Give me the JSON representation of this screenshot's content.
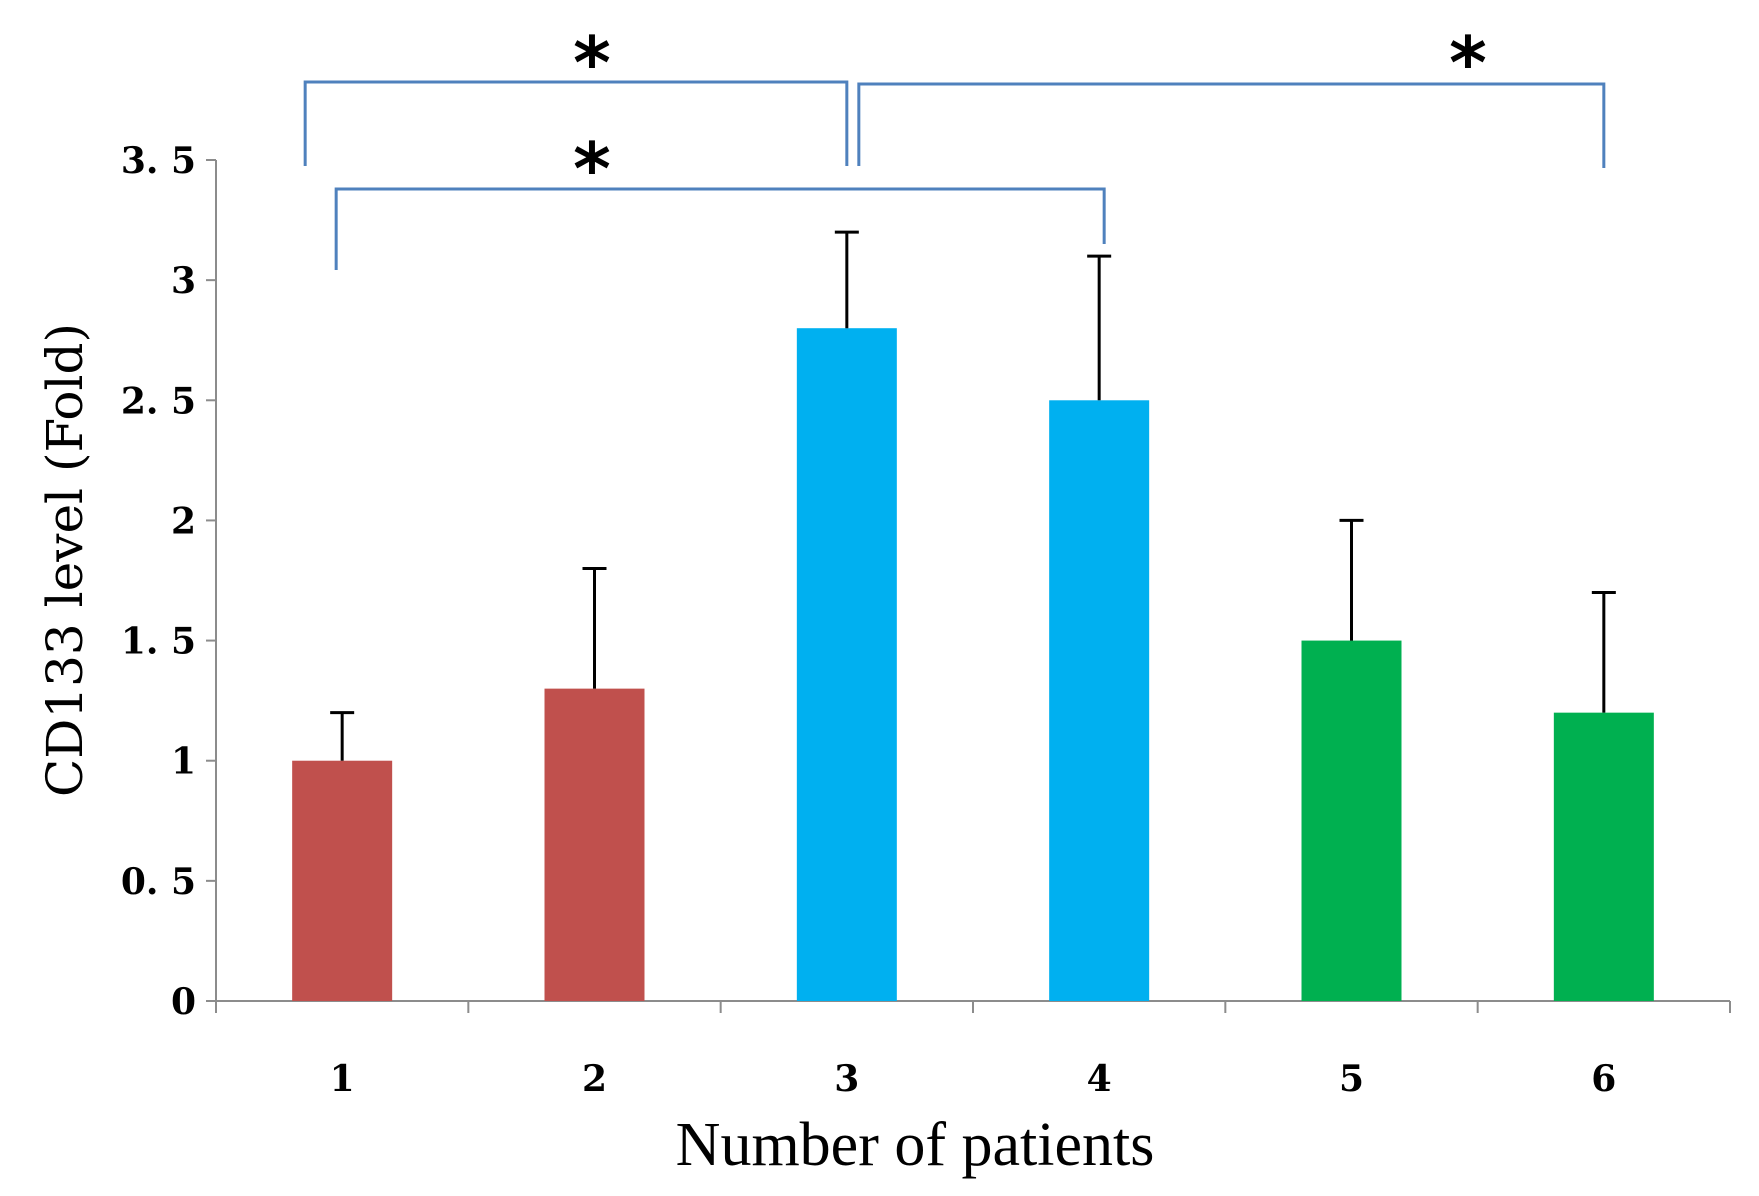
{
  "chart_data": {
    "type": "bar",
    "title": "",
    "xlabel": "Number of patients",
    "ylabel": "CD133 level (Fold)",
    "categories": [
      "1",
      "2",
      "3",
      "4",
      "5",
      "6"
    ],
    "values": [
      1.0,
      1.3,
      2.8,
      2.5,
      1.5,
      1.2
    ],
    "error_upper": [
      0.2,
      0.5,
      0.4,
      0.6,
      0.5,
      0.5
    ],
    "bar_colors": [
      "#C0504D",
      "#C0504D",
      "#00B0F0",
      "#00B0F0",
      "#00B050",
      "#00B050"
    ],
    "ylim": [
      0,
      3.5
    ],
    "yticks": [
      0,
      0.5,
      1,
      1.5,
      2,
      2.5,
      3,
      3.5
    ],
    "ytick_labels": [
      "0",
      "0. 5",
      "1",
      "1. 5",
      "2",
      "2. 5",
      "3",
      "3. 5"
    ],
    "grid": false,
    "legend": null,
    "bracket_color": "#4F81BD",
    "significance": [
      {
        "from": "1",
        "to": "3",
        "label": "*"
      },
      {
        "from": "1",
        "to": "4",
        "label": "*"
      },
      {
        "from": "3",
        "to": "6",
        "label": "*"
      }
    ]
  }
}
